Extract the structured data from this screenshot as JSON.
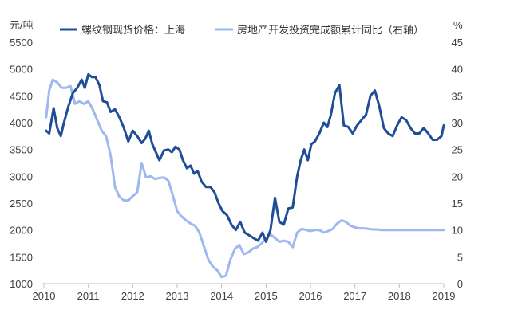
{
  "chart_data": {
    "type": "line",
    "left_unit": "元/吨",
    "right_unit": "%",
    "x_ticks": [
      "2010",
      "2011",
      "2012",
      "2013",
      "2014",
      "2015",
      "2016",
      "2017",
      "2018",
      "2019"
    ],
    "y_left_ticks": [
      "1000",
      "1500",
      "2000",
      "2500",
      "3000",
      "3500",
      "4000",
      "4500",
      "5000",
      "5500"
    ],
    "y_right_ticks": [
      "0",
      "5",
      "10",
      "15",
      "20",
      "25",
      "30",
      "35",
      "40",
      "45"
    ],
    "ylim_left": [
      1000,
      5500
    ],
    "ylim_right": [
      0,
      45
    ],
    "xlim": [
      2010,
      2019
    ],
    "grid": false,
    "legend_position": "top",
    "series": [
      {
        "name": "螺纹钢现货价格：上海",
        "axis": "left",
        "color": "#1f4e96",
        "x": [
          2010.05,
          2010.12,
          2010.22,
          2010.3,
          2010.38,
          2010.45,
          2010.55,
          2010.65,
          2010.75,
          2010.85,
          2010.92,
          2011.0,
          2011.08,
          2011.16,
          2011.25,
          2011.33,
          2011.42,
          2011.5,
          2011.6,
          2011.7,
          2011.8,
          2011.9,
          2012.0,
          2012.1,
          2012.2,
          2012.28,
          2012.36,
          2012.44,
          2012.52,
          2012.6,
          2012.7,
          2012.8,
          2012.88,
          2012.96,
          2013.05,
          2013.13,
          2013.22,
          2013.3,
          2013.38,
          2013.46,
          2013.55,
          2013.65,
          2013.75,
          2013.84,
          2013.93,
          2014.02,
          2014.12,
          2014.22,
          2014.32,
          2014.42,
          2014.52,
          2014.62,
          2014.72,
          2014.82,
          2014.92,
          2015.0,
          2015.1,
          2015.2,
          2015.3,
          2015.4,
          2015.5,
          2015.6,
          2015.7,
          2015.78,
          2015.86,
          2015.94,
          2016.02,
          2016.1,
          2016.2,
          2016.3,
          2016.38,
          2016.46,
          2016.55,
          2016.65,
          2016.75,
          2016.85,
          2016.95,
          2017.05,
          2017.15,
          2017.25,
          2017.35,
          2017.45,
          2017.55,
          2017.65,
          2017.75,
          2017.85,
          2017.95,
          2018.05,
          2018.15,
          2018.25,
          2018.35,
          2018.45,
          2018.55,
          2018.65,
          2018.75,
          2018.85,
          2018.95,
          2019.0
        ],
        "y": [
          3850,
          3800,
          4270,
          3900,
          3750,
          4000,
          4300,
          4550,
          4650,
          4800,
          4650,
          4900,
          4850,
          4850,
          4700,
          4400,
          4380,
          4200,
          4250,
          4100,
          3900,
          3650,
          3850,
          3750,
          3620,
          3700,
          3850,
          3600,
          3450,
          3300,
          3480,
          3500,
          3450,
          3550,
          3500,
          3300,
          3150,
          3200,
          3050,
          3100,
          2900,
          2800,
          2800,
          2700,
          2500,
          2350,
          2280,
          2100,
          2000,
          2150,
          1950,
          1900,
          1850,
          1800,
          1950,
          1780,
          2000,
          2600,
          2150,
          2100,
          2400,
          2420,
          3000,
          3300,
          3500,
          3300,
          3600,
          3650,
          3800,
          4000,
          3920,
          4150,
          4550,
          4700,
          3950,
          3920,
          3800,
          3950,
          4050,
          4150,
          4500,
          4600,
          4300,
          3900,
          3800,
          3750,
          3950,
          4100,
          4050,
          3900,
          3800,
          3800,
          3900,
          3800,
          3680,
          3680,
          3750,
          3950
        ]
      },
      {
        "name": "房地产开发投资完成额累计同比（右轴）",
        "axis": "right",
        "color": "#9fb8ee",
        "x": [
          2010.05,
          2010.12,
          2010.2,
          2010.3,
          2010.4,
          2010.5,
          2010.6,
          2010.7,
          2010.8,
          2010.9,
          2011.0,
          2011.1,
          2011.2,
          2011.3,
          2011.4,
          2011.5,
          2011.6,
          2011.7,
          2011.8,
          2011.9,
          2012.0,
          2012.1,
          2012.2,
          2012.3,
          2012.4,
          2012.5,
          2012.6,
          2012.7,
          2012.8,
          2012.9,
          2013.0,
          2013.1,
          2013.2,
          2013.3,
          2013.4,
          2013.5,
          2013.6,
          2013.7,
          2013.8,
          2013.9,
          2014.0,
          2014.1,
          2014.2,
          2014.3,
          2014.4,
          2014.5,
          2014.6,
          2014.7,
          2014.8,
          2014.9,
          2015.0,
          2015.1,
          2015.2,
          2015.3,
          2015.4,
          2015.5,
          2015.6,
          2015.7,
          2015.8,
          2015.9,
          2016.0,
          2016.1,
          2016.2,
          2016.3,
          2016.4,
          2016.5,
          2016.6,
          2016.7,
          2016.8,
          2016.9,
          2017.0,
          2017.1,
          2017.2,
          2017.3,
          2017.4,
          2017.5,
          2017.6,
          2017.7,
          2017.8,
          2017.9,
          2018.0,
          2018.1,
          2018.2,
          2018.3,
          2018.4,
          2018.5,
          2018.6,
          2018.7,
          2018.8,
          2018.9,
          2019.0
        ],
        "y": [
          31,
          36,
          38,
          37.5,
          36.5,
          36.5,
          36.8,
          33.5,
          34,
          33.5,
          34,
          32.5,
          30.5,
          28.5,
          27.5,
          24,
          18,
          16.2,
          15.5,
          15.5,
          16.3,
          17,
          22.5,
          19.8,
          20,
          19.5,
          19.7,
          19.8,
          19.2,
          16.5,
          13.5,
          12.5,
          11.8,
          11.2,
          10.8,
          9.5,
          7,
          4.5,
          3.2,
          2.5,
          1.2,
          1.5,
          4.5,
          6.5,
          7.2,
          5.5,
          5.8,
          6.5,
          6.8,
          7.5,
          8.5,
          9.2,
          8.5,
          7.8,
          8,
          7.8,
          6.8,
          9.5,
          10.2,
          10,
          9.8,
          10,
          10,
          9.5,
          9.8,
          10.2,
          11.2,
          11.8,
          11.5,
          10.8,
          10.5,
          10.3,
          10.3,
          10.2,
          10.1,
          10.1,
          10,
          10,
          10,
          10,
          10,
          10,
          10,
          10,
          10,
          10,
          10,
          10,
          10,
          10,
          10
        ]
      }
    ]
  }
}
